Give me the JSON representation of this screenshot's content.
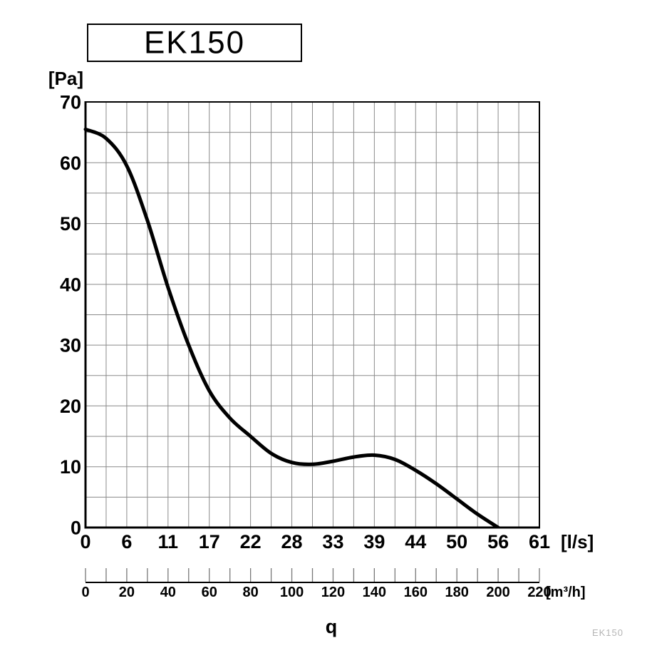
{
  "title_box": {
    "label": "EK150"
  },
  "watermark": "EK150",
  "colors": {
    "grid": "#8a8a8a",
    "axis": "#000000",
    "curve": "#000000",
    "secondary_tick": "#777777",
    "watermark": "#b5b5b5"
  },
  "chart_data": {
    "type": "line",
    "title": "EK150",
    "grid": {
      "on": true,
      "x_step_m3h": 10,
      "y_step_pa": 5
    },
    "y_axis": {
      "unit_label": "[Pa]",
      "min": 0,
      "max": 70,
      "tick_step": 10,
      "tick_labels": [
        "0",
        "10",
        "20",
        "30",
        "40",
        "50",
        "60",
        "70"
      ]
    },
    "x_axis_primary": {
      "unit_label": "[l/s]",
      "tick_labels": [
        "0",
        "6",
        "11",
        "17",
        "22",
        "28",
        "33",
        "39",
        "44",
        "50",
        "56",
        "61"
      ]
    },
    "x_axis_secondary": {
      "unit_label": "[m³/h]",
      "min": 0,
      "max": 220,
      "tick_step": 10,
      "label_step": 20,
      "tick_labels": [
        "0",
        "20",
        "40",
        "60",
        "80",
        "100",
        "120",
        "140",
        "160",
        "180",
        "200",
        "220"
      ]
    },
    "quantity_label": "q",
    "series": [
      {
        "name": "EK150 pressure curve",
        "color": "#000000",
        "x_unit": "m³/h",
        "y_unit": "Pa",
        "points": [
          [
            0,
            65.5
          ],
          [
            10,
            64.0
          ],
          [
            20,
            59.5
          ],
          [
            30,
            50.5
          ],
          [
            40,
            39.5
          ],
          [
            50,
            30.0
          ],
          [
            60,
            22.5
          ],
          [
            70,
            18.0
          ],
          [
            80,
            15.0
          ],
          [
            90,
            12.2
          ],
          [
            100,
            10.7
          ],
          [
            110,
            10.4
          ],
          [
            120,
            10.9
          ],
          [
            130,
            11.6
          ],
          [
            140,
            11.9
          ],
          [
            150,
            11.2
          ],
          [
            160,
            9.4
          ],
          [
            170,
            7.2
          ],
          [
            180,
            4.7
          ],
          [
            190,
            2.2
          ],
          [
            200,
            0.0
          ]
        ]
      }
    ]
  }
}
